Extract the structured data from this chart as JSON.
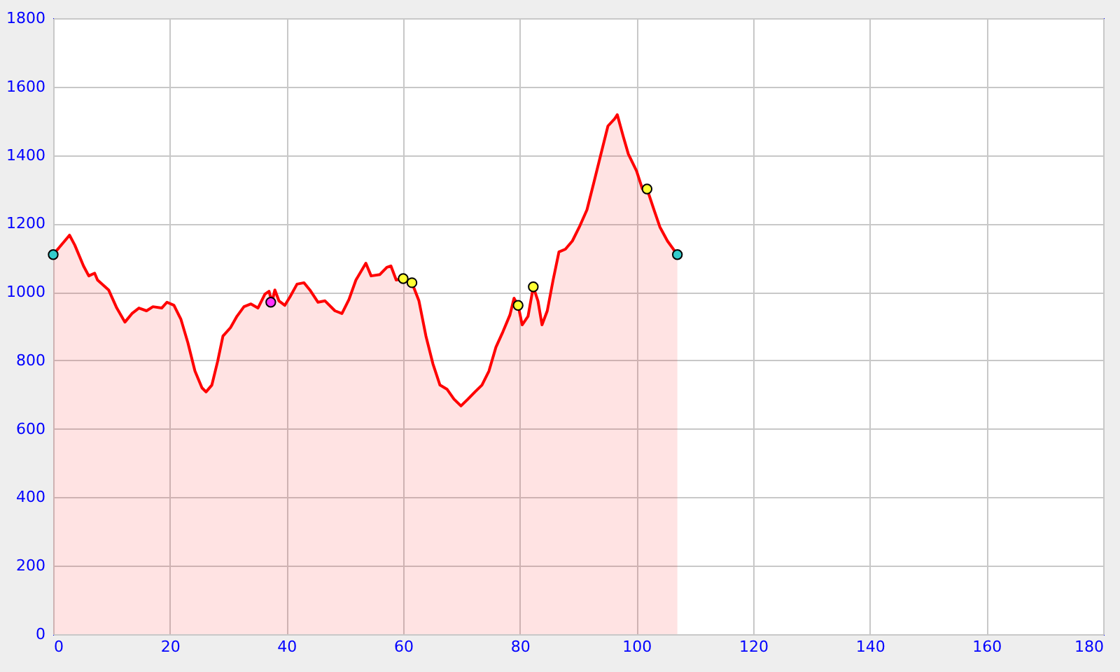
{
  "chart_data": {
    "type": "area",
    "xlim": [
      0,
      180
    ],
    "xticks": [
      0,
      20,
      40,
      60,
      80,
      100,
      120,
      140,
      160,
      180
    ],
    "ylim": [
      0,
      1800
    ],
    "yticks": [
      0,
      200,
      400,
      600,
      800,
      1000,
      1200,
      1400,
      1600,
      1800
    ],
    "grid": true,
    "series": [
      {
        "type": "area",
        "color": "#ff0000",
        "x": [
          0,
          2.8,
          3.7,
          5.2,
          6.1,
          7.1,
          7.6,
          9.5,
          10.9,
          12.3,
          13.5,
          14.7,
          16,
          17.1,
          18.6,
          19.5,
          20.7,
          21.9,
          23.1,
          24.3,
          25.5,
          26.2,
          27.2,
          28.2,
          29.1,
          30.4,
          31.5,
          32.7,
          33.9,
          35.1,
          36.3,
          37,
          37.5,
          38,
          38.7,
          39.7,
          40.6,
          41.8,
          43,
          44,
          45.4,
          46.6,
          48.3,
          49.5,
          50.7,
          51.9,
          53.6,
          54.5,
          56,
          57.2,
          57.9,
          58.8,
          60,
          61.5,
          62.7,
          63.9,
          65.1,
          66.3,
          67.5,
          68.7,
          69.9,
          71.1,
          72.3,
          73.5,
          74.7,
          75.9,
          77.1,
          78.3,
          79,
          79.7,
          80.4,
          81.4,
          82.3,
          83.1,
          83.8,
          84.7,
          85.7,
          86.7,
          87.8,
          89,
          90.2,
          91.5,
          92.7,
          93.9,
          95.1,
          96.2,
          96.7,
          97.7,
          98.6,
          100,
          101,
          101.8,
          103,
          104,
          105.3,
          107
        ],
        "values": [
          1109,
          1166,
          1137,
          1076,
          1047,
          1055,
          1035,
          1006,
          953,
          912,
          937,
          953,
          945,
          957,
          953,
          970,
          961,
          920,
          851,
          769,
          720,
          708,
          728,
          798,
          871,
          896,
          929,
          957,
          965,
          953,
          994,
          1002,
          970,
          1006,
          974,
          961,
          986,
          1023,
          1027,
          1006,
          970,
          974,
          945,
          937,
          978,
          1035,
          1084,
          1047,
          1051,
          1072,
          1076,
          1035,
          1039,
          1027,
          974,
          871,
          790,
          728,
          716,
          687,
          667,
          687,
          708,
          728,
          769,
          839,
          884,
          933,
          982,
          961,
          904,
          929,
          1015,
          974,
          904,
          945,
          1035,
          1117,
          1125,
          1149,
          1190,
          1240,
          1321,
          1403,
          1485,
          1505,
          1518,
          1456,
          1403,
          1354,
          1301,
          1301,
          1240,
          1190,
          1149,
          1109
        ]
      },
      {
        "type": "scatter",
        "marker": "circle",
        "x": [
          0,
          37.3,
          60,
          61.5,
          79.7,
          82.3,
          101.8,
          107
        ],
        "values": [
          1109,
          970,
          1039,
          1027,
          961,
          1015,
          1301,
          1109
        ],
        "colors": [
          "#33cccc",
          "#ff33ff",
          "#ffff33",
          "#ffff33",
          "#ffff33",
          "#ffff33",
          "#ffff33",
          "#33cccc"
        ]
      }
    ]
  }
}
